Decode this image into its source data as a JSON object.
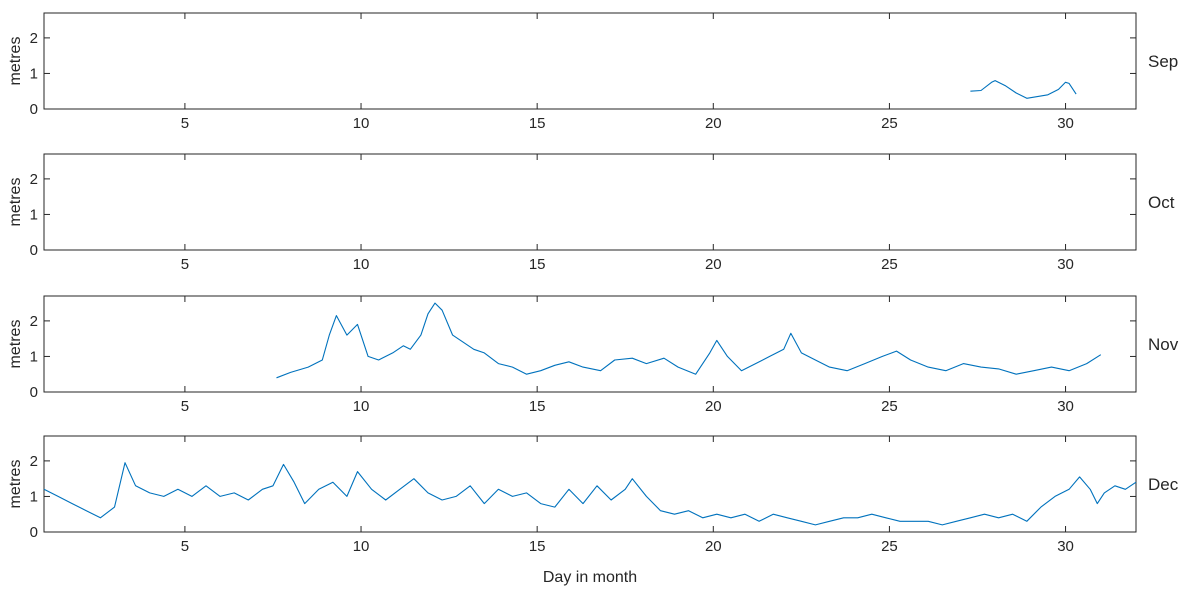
{
  "chart_data": {
    "type": "line",
    "layout": "stacked-panels",
    "xlabel": "Day in month",
    "xlim": [
      1,
      32
    ],
    "xticks": [
      5,
      10,
      15,
      20,
      25,
      30
    ],
    "ylim": [
      0,
      2.7
    ],
    "yticks": [
      0,
      1,
      2
    ],
    "grid": false,
    "line_color": "#0072BD",
    "panels": [
      {
        "label": "Sep",
        "ylabel": "metres",
        "points": [
          [
            27.3,
            0.5
          ],
          [
            27.6,
            0.52
          ],
          [
            27.9,
            0.75
          ],
          [
            28.0,
            0.8
          ],
          [
            28.3,
            0.65
          ],
          [
            28.6,
            0.45
          ],
          [
            28.9,
            0.3
          ],
          [
            29.2,
            0.35
          ],
          [
            29.5,
            0.4
          ],
          [
            29.8,
            0.55
          ],
          [
            30.0,
            0.75
          ],
          [
            30.1,
            0.72
          ],
          [
            30.3,
            0.42
          ]
        ]
      },
      {
        "label": "Oct",
        "ylabel": "metres",
        "points": []
      },
      {
        "label": "Nov",
        "ylabel": "metres",
        "points": [
          [
            7.6,
            0.4
          ],
          [
            8.0,
            0.55
          ],
          [
            8.5,
            0.7
          ],
          [
            8.9,
            0.9
          ],
          [
            9.1,
            1.6
          ],
          [
            9.3,
            2.15
          ],
          [
            9.6,
            1.6
          ],
          [
            9.9,
            1.9
          ],
          [
            10.2,
            1.0
          ],
          [
            10.5,
            0.9
          ],
          [
            10.9,
            1.1
          ],
          [
            11.2,
            1.3
          ],
          [
            11.4,
            1.2
          ],
          [
            11.7,
            1.6
          ],
          [
            11.9,
            2.2
          ],
          [
            12.1,
            2.5
          ],
          [
            12.3,
            2.3
          ],
          [
            12.6,
            1.6
          ],
          [
            12.9,
            1.4
          ],
          [
            13.2,
            1.2
          ],
          [
            13.5,
            1.1
          ],
          [
            13.9,
            0.8
          ],
          [
            14.3,
            0.7
          ],
          [
            14.7,
            0.5
          ],
          [
            15.1,
            0.6
          ],
          [
            15.5,
            0.75
          ],
          [
            15.9,
            0.85
          ],
          [
            16.3,
            0.7
          ],
          [
            16.8,
            0.6
          ],
          [
            17.2,
            0.9
          ],
          [
            17.7,
            0.95
          ],
          [
            18.1,
            0.8
          ],
          [
            18.6,
            0.95
          ],
          [
            19.0,
            0.7
          ],
          [
            19.5,
            0.5
          ],
          [
            19.9,
            1.1
          ],
          [
            20.1,
            1.45
          ],
          [
            20.4,
            1.0
          ],
          [
            20.8,
            0.6
          ],
          [
            21.2,
            0.8
          ],
          [
            21.6,
            1.0
          ],
          [
            22.0,
            1.2
          ],
          [
            22.2,
            1.65
          ],
          [
            22.5,
            1.1
          ],
          [
            22.9,
            0.9
          ],
          [
            23.3,
            0.7
          ],
          [
            23.8,
            0.6
          ],
          [
            24.3,
            0.8
          ],
          [
            24.8,
            1.0
          ],
          [
            25.2,
            1.15
          ],
          [
            25.6,
            0.9
          ],
          [
            26.1,
            0.7
          ],
          [
            26.6,
            0.6
          ],
          [
            27.1,
            0.8
          ],
          [
            27.6,
            0.7
          ],
          [
            28.1,
            0.65
          ],
          [
            28.6,
            0.5
          ],
          [
            29.1,
            0.6
          ],
          [
            29.6,
            0.7
          ],
          [
            30.1,
            0.6
          ],
          [
            30.6,
            0.8
          ],
          [
            31.0,
            1.05
          ]
        ]
      },
      {
        "label": "Dec",
        "ylabel": "metres",
        "points": [
          [
            1.0,
            1.2
          ],
          [
            1.4,
            1.0
          ],
          [
            1.8,
            0.8
          ],
          [
            2.2,
            0.6
          ],
          [
            2.6,
            0.4
          ],
          [
            3.0,
            0.7
          ],
          [
            3.3,
            1.95
          ],
          [
            3.6,
            1.3
          ],
          [
            4.0,
            1.1
          ],
          [
            4.4,
            1.0
          ],
          [
            4.8,
            1.2
          ],
          [
            5.2,
            1.0
          ],
          [
            5.6,
            1.3
          ],
          [
            6.0,
            1.0
          ],
          [
            6.4,
            1.1
          ],
          [
            6.8,
            0.9
          ],
          [
            7.2,
            1.2
          ],
          [
            7.5,
            1.3
          ],
          [
            7.8,
            1.9
          ],
          [
            8.1,
            1.4
          ],
          [
            8.4,
            0.8
          ],
          [
            8.8,
            1.2
          ],
          [
            9.2,
            1.4
          ],
          [
            9.6,
            1.0
          ],
          [
            9.9,
            1.7
          ],
          [
            10.3,
            1.2
          ],
          [
            10.7,
            0.9
          ],
          [
            11.1,
            1.2
          ],
          [
            11.5,
            1.5
          ],
          [
            11.9,
            1.1
          ],
          [
            12.3,
            0.9
          ],
          [
            12.7,
            1.0
          ],
          [
            13.1,
            1.3
          ],
          [
            13.5,
            0.8
          ],
          [
            13.9,
            1.2
          ],
          [
            14.3,
            1.0
          ],
          [
            14.7,
            1.1
          ],
          [
            15.1,
            0.8
          ],
          [
            15.5,
            0.7
          ],
          [
            15.9,
            1.2
          ],
          [
            16.3,
            0.8
          ],
          [
            16.7,
            1.3
          ],
          [
            17.1,
            0.9
          ],
          [
            17.5,
            1.2
          ],
          [
            17.7,
            1.5
          ],
          [
            18.1,
            1.0
          ],
          [
            18.5,
            0.6
          ],
          [
            18.9,
            0.5
          ],
          [
            19.3,
            0.6
          ],
          [
            19.7,
            0.4
          ],
          [
            20.1,
            0.5
          ],
          [
            20.5,
            0.4
          ],
          [
            20.9,
            0.5
          ],
          [
            21.3,
            0.3
          ],
          [
            21.7,
            0.5
          ],
          [
            22.1,
            0.4
          ],
          [
            22.5,
            0.3
          ],
          [
            22.9,
            0.2
          ],
          [
            23.3,
            0.3
          ],
          [
            23.7,
            0.4
          ],
          [
            24.1,
            0.4
          ],
          [
            24.5,
            0.5
          ],
          [
            24.9,
            0.4
          ],
          [
            25.3,
            0.3
          ],
          [
            25.7,
            0.3
          ],
          [
            26.1,
            0.3
          ],
          [
            26.5,
            0.2
          ],
          [
            26.9,
            0.3
          ],
          [
            27.3,
            0.4
          ],
          [
            27.7,
            0.5
          ],
          [
            28.1,
            0.4
          ],
          [
            28.5,
            0.5
          ],
          [
            28.9,
            0.3
          ],
          [
            29.3,
            0.7
          ],
          [
            29.7,
            1.0
          ],
          [
            30.1,
            1.2
          ],
          [
            30.4,
            1.55
          ],
          [
            30.7,
            1.2
          ],
          [
            30.9,
            0.8
          ],
          [
            31.1,
            1.1
          ],
          [
            31.4,
            1.3
          ],
          [
            31.7,
            1.2
          ],
          [
            32.0,
            1.4
          ]
        ]
      }
    ]
  }
}
